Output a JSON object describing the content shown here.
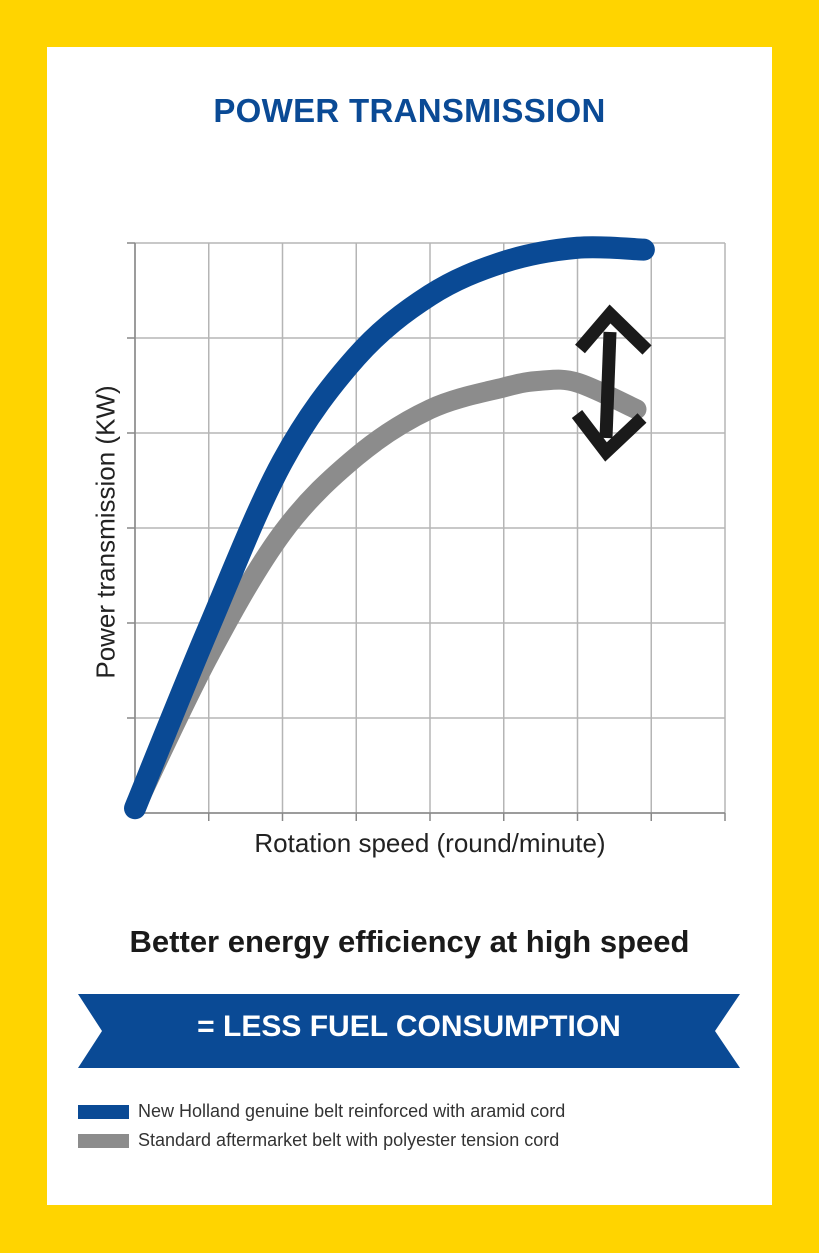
{
  "title": "POWER TRANSMISSION",
  "headline": "Better energy efficiency at high speed",
  "banner": "= LESS FUEL CONSUMPTION",
  "colors": {
    "background": "#FFD400",
    "blue": "#0a4a95",
    "gray": "#8c8c8c",
    "arrow": "#1a1a1a"
  },
  "chart_data": {
    "type": "line",
    "xlabel": "Rotation speed (round/minute)",
    "ylabel": "Power transmission (KW)",
    "xlim": [
      0,
      8
    ],
    "ylim": [
      0,
      6
    ],
    "grid": true,
    "show_tick_labels": false,
    "legend_position": "bottom",
    "series": [
      {
        "name": "New Holland genuine belt reinforced with aramid cord",
        "color": "#0a4a95",
        "x": [
          0,
          1,
          2,
          3,
          4,
          5,
          6,
          6.9
        ],
        "y": [
          0.05,
          1.95,
          3.7,
          4.8,
          5.45,
          5.8,
          5.95,
          5.93
        ]
      },
      {
        "name": "Standard aftermarket belt with polyester tension cord",
        "color": "#8c8c8c",
        "x": [
          0,
          1,
          2,
          3,
          4,
          5,
          5.5,
          6.0,
          6.8
        ],
        "y": [
          0.05,
          1.65,
          2.95,
          3.75,
          4.25,
          4.48,
          4.55,
          4.53,
          4.25
        ]
      }
    ],
    "annotation": "double-headed arrow marking the gap between the two curves at high speed"
  }
}
